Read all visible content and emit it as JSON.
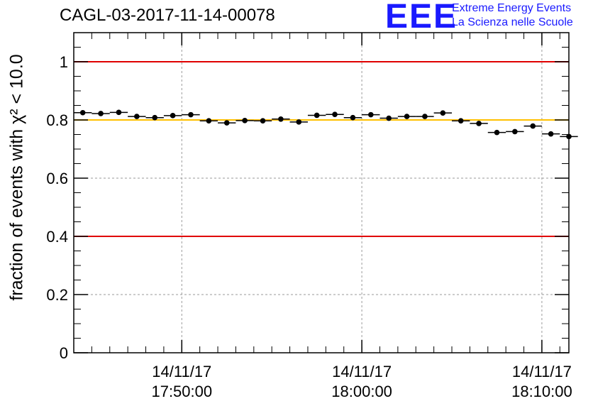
{
  "header": {
    "title": "CAGL-03-2017-11-14-00078",
    "logo_text": "EEE",
    "logo_line1": "Extreme Energy Events",
    "logo_line2": "La Scienza nelle Scuole"
  },
  "chart_data": {
    "type": "scatter",
    "title": "CAGL-03-2017-11-14-00078",
    "ylabel": "fraction of events with χ² < 10.0",
    "ylim": [
      0,
      1.1
    ],
    "xlim": [
      "2017-11-14 17:44:00",
      "2017-11-14 18:11:30"
    ],
    "grid": true,
    "y_ticks": [
      "0",
      "0.2",
      "0.4",
      "0.6",
      "0.8",
      "1"
    ],
    "x_ticks": [
      {
        "x": "2017-11-14 17:50:00",
        "date": "14/11/17",
        "time": "17:50:00"
      },
      {
        "x": "2017-11-14 18:00:00",
        "date": "14/11/17",
        "time": "18:00:00"
      },
      {
        "x": "2017-11-14 18:10:00",
        "date": "14/11/17",
        "time": "18:10:00"
      }
    ],
    "reference_lines": [
      {
        "y": 1.0,
        "color": "#e00000"
      },
      {
        "y": 0.8,
        "color": "#ffc000"
      },
      {
        "y": 0.4,
        "color": "#e00000"
      }
    ],
    "bin_width_seconds": 60,
    "series": [
      {
        "color": "#000000",
        "x": [
          "2017-11-14 17:44:00",
          "2017-11-14 17:45:00",
          "2017-11-14 17:46:00",
          "2017-11-14 17:47:00",
          "2017-11-14 17:48:00",
          "2017-11-14 17:49:00",
          "2017-11-14 17:50:00",
          "2017-11-14 17:51:00",
          "2017-11-14 17:52:00",
          "2017-11-14 17:53:00",
          "2017-11-14 17:54:00",
          "2017-11-14 17:55:00",
          "2017-11-14 17:56:00",
          "2017-11-14 17:57:00",
          "2017-11-14 17:58:00",
          "2017-11-14 17:59:00",
          "2017-11-14 18:00:00",
          "2017-11-14 18:01:00",
          "2017-11-14 18:02:00",
          "2017-11-14 18:03:00",
          "2017-11-14 18:04:00",
          "2017-11-14 18:05:00",
          "2017-11-14 18:06:00",
          "2017-11-14 18:07:00",
          "2017-11-14 18:08:00",
          "2017-11-14 18:09:00",
          "2017-11-14 18:10:00",
          "2017-11-14 18:11:00"
        ],
        "y": [
          0.825,
          0.822,
          0.826,
          0.812,
          0.808,
          0.815,
          0.818,
          0.797,
          0.79,
          0.798,
          0.797,
          0.803,
          0.793,
          0.816,
          0.819,
          0.808,
          0.818,
          0.806,
          0.812,
          0.812,
          0.824,
          0.797,
          0.788,
          0.757,
          0.76,
          0.779,
          0.752,
          0.743
        ]
      }
    ]
  }
}
